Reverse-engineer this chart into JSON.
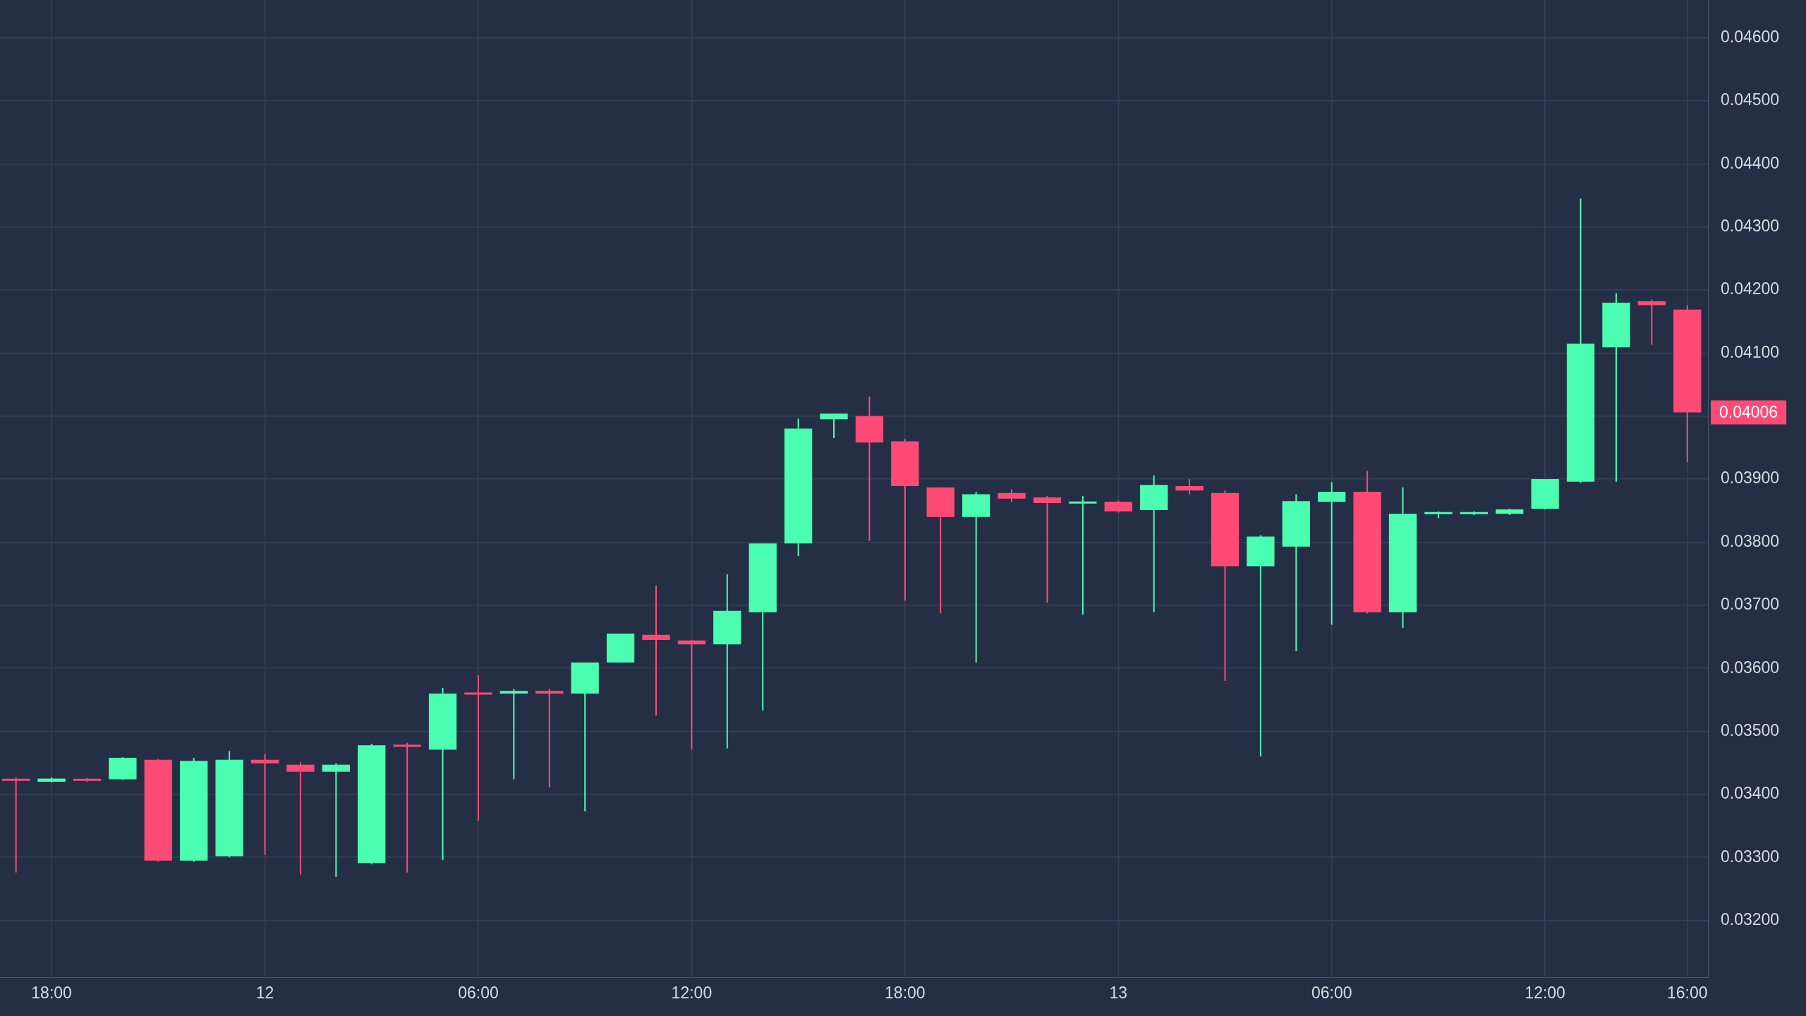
{
  "chart_data": {
    "type": "candlestick",
    "categories": [
      null,
      "18:00",
      null,
      null,
      null,
      null,
      null,
      "12",
      null,
      null,
      null,
      null,
      null,
      "06:00",
      null,
      null,
      null,
      null,
      null,
      "12:00",
      null,
      null,
      null,
      null,
      null,
      "18:00",
      null,
      null,
      null,
      null,
      null,
      "13",
      null,
      null,
      null,
      null,
      null,
      "06:00",
      null,
      null,
      null,
      null,
      null,
      "12:00",
      null,
      null,
      null,
      "16:00"
    ],
    "ohlc": [
      [
        0.03424,
        0.03427,
        0.03276,
        0.03422
      ],
      [
        0.0342,
        0.03427,
        0.03419,
        0.03425
      ],
      [
        0.03424,
        0.03426,
        0.0342,
        0.03422
      ],
      [
        0.03424,
        0.03459,
        0.03423,
        0.03458
      ],
      [
        0.03455,
        0.03456,
        0.03293,
        0.03295
      ],
      [
        0.03295,
        0.03458,
        0.03293,
        0.03453
      ],
      [
        0.03302,
        0.03469,
        0.033,
        0.03455
      ],
      [
        0.03455,
        0.03464,
        0.03304,
        0.03449
      ],
      [
        0.03447,
        0.03451,
        0.03273,
        0.03436
      ],
      [
        0.03436,
        0.03449,
        0.03269,
        0.03447
      ],
      [
        0.03291,
        0.0348,
        0.03289,
        0.03478
      ],
      [
        0.03478,
        0.03482,
        0.03276,
        0.03476
      ],
      [
        0.03471,
        0.03569,
        0.03296,
        0.0356
      ],
      [
        0.03561,
        0.03589,
        0.03358,
        0.03559
      ],
      [
        0.0356,
        0.03567,
        0.03424,
        0.03564
      ],
      [
        0.03564,
        0.03567,
        0.03411,
        0.0356
      ],
      [
        0.0356,
        0.03609,
        0.03373,
        0.03609
      ],
      [
        0.03609,
        0.03655,
        0.03609,
        0.03655
      ],
      [
        0.03653,
        0.03731,
        0.03525,
        0.03645
      ],
      [
        0.03644,
        0.03645,
        0.03471,
        0.03638
      ],
      [
        0.03638,
        0.03749,
        0.03473,
        0.03691
      ],
      [
        0.03689,
        0.03798,
        0.03533,
        0.03798
      ],
      [
        0.03798,
        0.03996,
        0.03778,
        0.0398
      ],
      [
        0.03995,
        0.04004,
        0.03965,
        0.04004
      ],
      [
        0.04,
        0.04031,
        0.03802,
        0.03958
      ],
      [
        0.0396,
        0.03964,
        0.03707,
        0.03889
      ],
      [
        0.03887,
        0.03887,
        0.03687,
        0.0384
      ],
      [
        0.0384,
        0.0388,
        0.03609,
        0.03876
      ],
      [
        0.03878,
        0.03884,
        0.03864,
        0.03869
      ],
      [
        0.03871,
        0.03873,
        0.03704,
        0.03862
      ],
      [
        0.03862,
        0.03873,
        0.03685,
        0.03864
      ],
      [
        0.03864,
        0.03866,
        0.03847,
        0.03849
      ],
      [
        0.03851,
        0.03906,
        0.03689,
        0.03891
      ],
      [
        0.03889,
        0.039,
        0.03876,
        0.03882
      ],
      [
        0.03878,
        0.03882,
        0.0358,
        0.03762
      ],
      [
        0.03762,
        0.03811,
        0.0346,
        0.03809
      ],
      [
        0.03793,
        0.03876,
        0.03627,
        0.03865
      ],
      [
        0.03864,
        0.03895,
        0.03669,
        0.0388
      ],
      [
        0.0388,
        0.03913,
        0.03687,
        0.03689
      ],
      [
        0.03689,
        0.03887,
        0.03664,
        0.03845
      ],
      [
        0.03845,
        0.03849,
        0.03838,
        0.03847
      ],
      [
        0.03845,
        0.03849,
        0.03843,
        0.03847
      ],
      [
        0.03845,
        0.03853,
        0.03843,
        0.03852
      ],
      [
        0.03853,
        0.039,
        0.03852,
        0.039
      ],
      [
        0.03896,
        0.04345,
        0.03894,
        0.04115
      ],
      [
        0.04109,
        0.04195,
        0.03896,
        0.0418
      ],
      [
        0.04182,
        0.04185,
        0.04113,
        0.04176
      ],
      [
        0.04169,
        0.04176,
        0.03927,
        0.04006
      ]
    ],
    "colors": [
      "#ff4a76",
      "#4afdb0",
      "#ff4a76",
      "#4afdb0",
      "#ff4a76",
      "#4afdb0",
      "#4afdb0",
      "#ff4a76",
      "#ff4a76",
      "#4afdb0",
      "#4afdb0",
      "#ff4a76",
      "#4afdb0",
      "#ff4a76",
      "#4afdb0",
      "#ff4a76",
      "#4afdb0",
      "#4afdb0",
      "#ff4a76",
      "#ff4a76",
      "#4afdb0",
      "#4afdb0",
      "#4afdb0",
      "#4afdb0",
      "#ff4a76",
      "#ff4a76",
      "#ff4a76",
      "#4afdb0",
      "#ff4a76",
      "#ff4a76",
      "#4afdb0",
      "#ff4a76",
      "#4afdb0",
      "#ff4a76",
      "#ff4a76",
      "#4afdb0",
      "#4afdb0",
      "#4afdb0",
      "#ff4a76",
      "#4afdb0",
      "#4afdb0",
      "#4afdb0",
      "#4afdb0",
      "#4afdb0",
      "#4afdb0",
      "#4afdb0",
      "#ff4a76",
      "#ff4a76"
    ],
    "ylim": [
      0.0311,
      0.0466
    ],
    "yticks": [
      {
        "value": 0.032,
        "label": "0.03200"
      },
      {
        "value": 0.033,
        "label": "0.03300"
      },
      {
        "value": 0.034,
        "label": "0.03400"
      },
      {
        "value": 0.035,
        "label": "0.03500"
      },
      {
        "value": 0.036,
        "label": "0.03600"
      },
      {
        "value": 0.037,
        "label": "0.03700"
      },
      {
        "value": 0.038,
        "label": "0.03800"
      },
      {
        "value": 0.039,
        "label": "0.03900"
      },
      {
        "value": 0.04,
        "label": null
      },
      {
        "value": 0.041,
        "label": "0.04100"
      },
      {
        "value": 0.042,
        "label": "0.04200"
      },
      {
        "value": 0.043,
        "label": "0.04300"
      },
      {
        "value": 0.044,
        "label": "0.04400"
      },
      {
        "value": 0.045,
        "label": "0.04500"
      },
      {
        "value": 0.046,
        "label": "0.04600"
      }
    ],
    "annotations": [
      "0.04006"
    ],
    "grid": true
  }
}
